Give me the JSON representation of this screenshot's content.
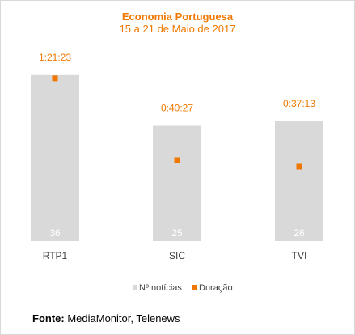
{
  "chart_data": {
    "type": "bar",
    "title": "Economia Portuguesa",
    "subtitle": "15 a 21 de Maio de 2017",
    "categories": [
      "RTP1",
      "SIC",
      "TVI"
    ],
    "series": [
      {
        "name": "Nº notícias",
        "type": "bar",
        "values": [
          36,
          25,
          26
        ],
        "labels": [
          "36",
          "25",
          "26"
        ],
        "color": "#d9d9d9"
      },
      {
        "name": "Duração",
        "type": "marker",
        "values": [
          "1:21:23",
          "0:40:27",
          "0:37:13"
        ],
        "seconds": [
          4883,
          2427,
          2233
        ],
        "color": "#f07800"
      }
    ],
    "ylim_bars": [
      0,
      40
    ],
    "ylim_duration_seconds": [
      0,
      5400
    ],
    "legend_position": "bottom",
    "grid": false
  },
  "footer": {
    "source_label": "Fonte:",
    "source_text": " MediaMonitor, Telenews"
  }
}
